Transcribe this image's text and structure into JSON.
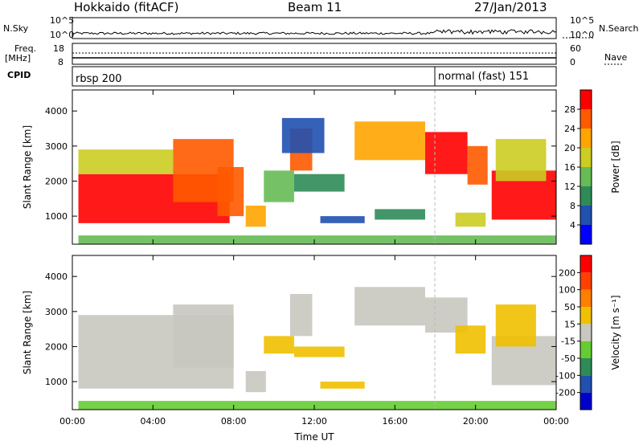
{
  "header": {
    "station": "Hokkaido (fitACF)",
    "beam": "Beam 11",
    "date": "27/Jan/2013"
  },
  "noise_panel": {
    "left_label": "N.Sky",
    "right_label": "N.Search",
    "left_ticks": [
      "10^5",
      "10^0"
    ],
    "right_ticks": [
      "10^5",
      "10^0"
    ]
  },
  "freq_panel": {
    "left_label_1": "Freq.",
    "left_label_2": "[MHz]",
    "right_label": "Nave",
    "left_ticks": [
      "18",
      "8"
    ],
    "right_ticks": [
      "60",
      "0"
    ]
  },
  "cpid_panel": {
    "label": "CPID",
    "program_1": "rbsp 200",
    "program_2": "normal (fast) 151"
  },
  "chart_data": [
    {
      "type": "heatmap",
      "parameter": "power",
      "ylabel": "Slant Range [km]",
      "xlabel": "",
      "ylim": [
        200,
        4600
      ],
      "yticks": [
        1000,
        2000,
        3000,
        4000
      ],
      "xlim": [
        0,
        24
      ],
      "xticks": [
        "00:00",
        "04:00",
        "08:00",
        "12:00",
        "16:00",
        "20:00",
        "00:00"
      ],
      "colorbar": {
        "label": "Power [dB]",
        "ticks": [
          "4",
          "8",
          "12",
          "16",
          "20",
          "24",
          "28"
        ],
        "range": [
          0,
          30
        ],
        "colors": [
          "#0000ff",
          "#2050b0",
          "#2e8b57",
          "#66bb55",
          "#cccc22",
          "#ffa500",
          "#ff5a00",
          "#ff0000"
        ]
      },
      "regions": [
        {
          "t0": 0.3,
          "t1": 7.8,
          "r0": 800,
          "r1": 2200,
          "level": 28
        },
        {
          "t0": 0.3,
          "t1": 5.0,
          "r0": 2200,
          "r1": 2900,
          "level": 18
        },
        {
          "t0": 5.0,
          "t1": 8.0,
          "r0": 1400,
          "r1": 3200,
          "level": 24
        },
        {
          "t0": 7.2,
          "t1": 8.5,
          "r0": 1000,
          "r1": 2400,
          "level": 26
        },
        {
          "t0": 8.6,
          "t1": 9.6,
          "r0": 700,
          "r1": 1300,
          "level": 20
        },
        {
          "t0": 9.5,
          "t1": 11.0,
          "r0": 1400,
          "r1": 2300,
          "level": 12
        },
        {
          "t0": 10.8,
          "t1": 11.9,
          "r0": 2300,
          "r1": 3500,
          "level": 26
        },
        {
          "t0": 10.4,
          "t1": 12.5,
          "r0": 2800,
          "r1": 3800,
          "level": 6
        },
        {
          "t0": 11.0,
          "t1": 13.5,
          "r0": 1700,
          "r1": 2200,
          "level": 8
        },
        {
          "t0": 12.3,
          "t1": 14.5,
          "r0": 800,
          "r1": 1000,
          "level": 6
        },
        {
          "t0": 14.0,
          "t1": 17.5,
          "r0": 2600,
          "r1": 3700,
          "level": 20
        },
        {
          "t0": 15.0,
          "t1": 17.5,
          "r0": 900,
          "r1": 1200,
          "level": 10
        },
        {
          "t0": 17.5,
          "t1": 19.6,
          "r0": 2200,
          "r1": 3400,
          "level": 27
        },
        {
          "t0": 19.6,
          "t1": 20.6,
          "r0": 1900,
          "r1": 3000,
          "level": 24
        },
        {
          "t0": 19.0,
          "t1": 20.5,
          "r0": 700,
          "r1": 1100,
          "level": 16
        },
        {
          "t0": 20.8,
          "t1": 24.0,
          "r0": 900,
          "r1": 2300,
          "level": 27
        },
        {
          "t0": 21.0,
          "t1": 23.5,
          "r0": 2000,
          "r1": 3200,
          "level": 18
        },
        {
          "t0": 0.3,
          "t1": 24.0,
          "r0": 200,
          "r1": 450,
          "level": 14
        }
      ]
    },
    {
      "type": "heatmap",
      "parameter": "velocity",
      "ylabel": "Slant Range [km]",
      "xlabel": "Time UT",
      "ylim": [
        200,
        4600
      ],
      "yticks": [
        1000,
        2000,
        3000,
        4000
      ],
      "xlim": [
        0,
        24
      ],
      "xticks": [
        "00:00",
        "04:00",
        "08:00",
        "12:00",
        "16:00",
        "20:00",
        "00:00"
      ],
      "colorbar": {
        "label": "Velocity [m s⁻¹]",
        "ticks": [
          "200",
          "100",
          "50",
          "15",
          "-15",
          "-50",
          "-100",
          "-200"
        ],
        "range": [
          -250,
          250
        ],
        "colors": [
          "#0000cc",
          "#2050b0",
          "#2e8b57",
          "#66cc33",
          "#c8c8c0",
          "#f0c000",
          "#ff7f00",
          "#ff4000",
          "#ff0000"
        ]
      },
      "regions": [
        {
          "t0": 0.3,
          "t1": 8.0,
          "r0": 800,
          "r1": 2900,
          "level": 0
        },
        {
          "t0": 5.0,
          "t1": 8.0,
          "r0": 1400,
          "r1": 3200,
          "level": 0
        },
        {
          "t0": 8.6,
          "t1": 9.6,
          "r0": 700,
          "r1": 1300,
          "level": 0
        },
        {
          "t0": 9.5,
          "t1": 11.0,
          "r0": 1800,
          "r1": 2300,
          "level": 30
        },
        {
          "t0": 10.8,
          "t1": 11.9,
          "r0": 2300,
          "r1": 3500,
          "level": 0
        },
        {
          "t0": 11.0,
          "t1": 13.5,
          "r0": 1700,
          "r1": 2000,
          "level": 30
        },
        {
          "t0": 12.3,
          "t1": 14.5,
          "r0": 800,
          "r1": 1000,
          "level": 30
        },
        {
          "t0": 14.0,
          "t1": 17.5,
          "r0": 2600,
          "r1": 3700,
          "level": 0
        },
        {
          "t0": 17.5,
          "t1": 19.6,
          "r0": 2400,
          "r1": 3400,
          "level": 0
        },
        {
          "t0": 19.0,
          "t1": 20.5,
          "r0": 1800,
          "r1": 2600,
          "level": 30
        },
        {
          "t0": 20.8,
          "t1": 24.0,
          "r0": 900,
          "r1": 2300,
          "level": 0
        },
        {
          "t0": 21.0,
          "t1": 23.0,
          "r0": 2000,
          "r1": 3200,
          "level": 30
        },
        {
          "t0": 0.3,
          "t1": 24.0,
          "r0": 200,
          "r1": 450,
          "level": -80
        }
      ]
    }
  ]
}
